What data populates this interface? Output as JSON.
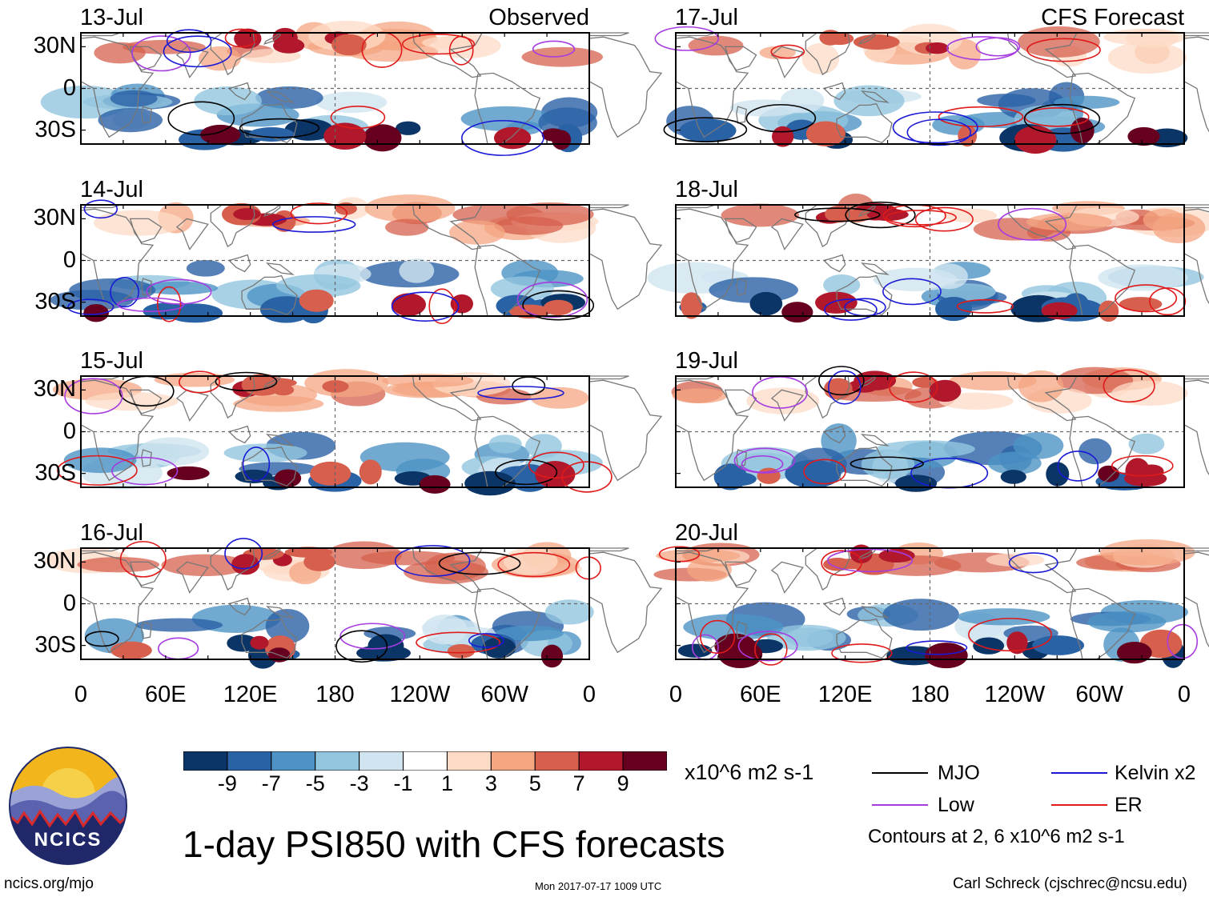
{
  "chart_data": {
    "type": "heatmap",
    "title": "1-day PSI850 with CFS forecasts",
    "variable": "PSI850",
    "units": "x10^6 m2 s-1",
    "colorbar": {
      "ticks": [
        "-9",
        "-7",
        "-5",
        "-3",
        "-1",
        "1",
        "3",
        "5",
        "7",
        "9"
      ],
      "colors": [
        "#0b3566",
        "#2a62a6",
        "#4d93c6",
        "#92c5de",
        "#d1e5f0",
        "#ffffff",
        "#fddbc7",
        "#f4a582",
        "#d6604d",
        "#b2182b",
        "#67001f"
      ]
    },
    "axes": {
      "y_ticks": [
        "30N",
        "0",
        "30S"
      ],
      "x_ticks": [
        "0",
        "60E",
        "120E",
        "180",
        "120W",
        "60W",
        "0"
      ],
      "lon_range": [
        0,
        360
      ],
      "lat_range": [
        -40,
        40
      ]
    },
    "panels": [
      {
        "date": "13-Jul",
        "label": "Observed",
        "column": "left",
        "row": 0
      },
      {
        "date": "14-Jul",
        "label": "",
        "column": "left",
        "row": 1
      },
      {
        "date": "15-Jul",
        "label": "",
        "column": "left",
        "row": 2
      },
      {
        "date": "16-Jul",
        "label": "",
        "column": "left",
        "row": 3
      },
      {
        "date": "17-Jul",
        "label": "CFS Forecast",
        "column": "right",
        "row": 0
      },
      {
        "date": "18-Jul",
        "label": "",
        "column": "right",
        "row": 1
      },
      {
        "date": "19-Jul",
        "label": "",
        "column": "right",
        "row": 2
      },
      {
        "date": "20-Jul",
        "label": "",
        "column": "right",
        "row": 3
      }
    ],
    "legend": [
      {
        "name": "MJO",
        "color": "#000000"
      },
      {
        "name": "Kelvin x2",
        "color": "#1a1ad6"
      },
      {
        "name": "Low",
        "color": "#a63ce0"
      },
      {
        "name": "ER",
        "color": "#e01a1a"
      }
    ],
    "contour_note": "Contours at 2, 6 x10^6 m2 s-1"
  },
  "footer": {
    "site": "ncics.org/mjo",
    "timestamp": "Mon 2017-07-17 1009 UTC",
    "author": "Carl Schreck (cjschrec@ncsu.edu)",
    "logo_text": "NCICS"
  },
  "colors": {
    "land": "#777777",
    "axis": "#000000",
    "equator": "#666666"
  }
}
